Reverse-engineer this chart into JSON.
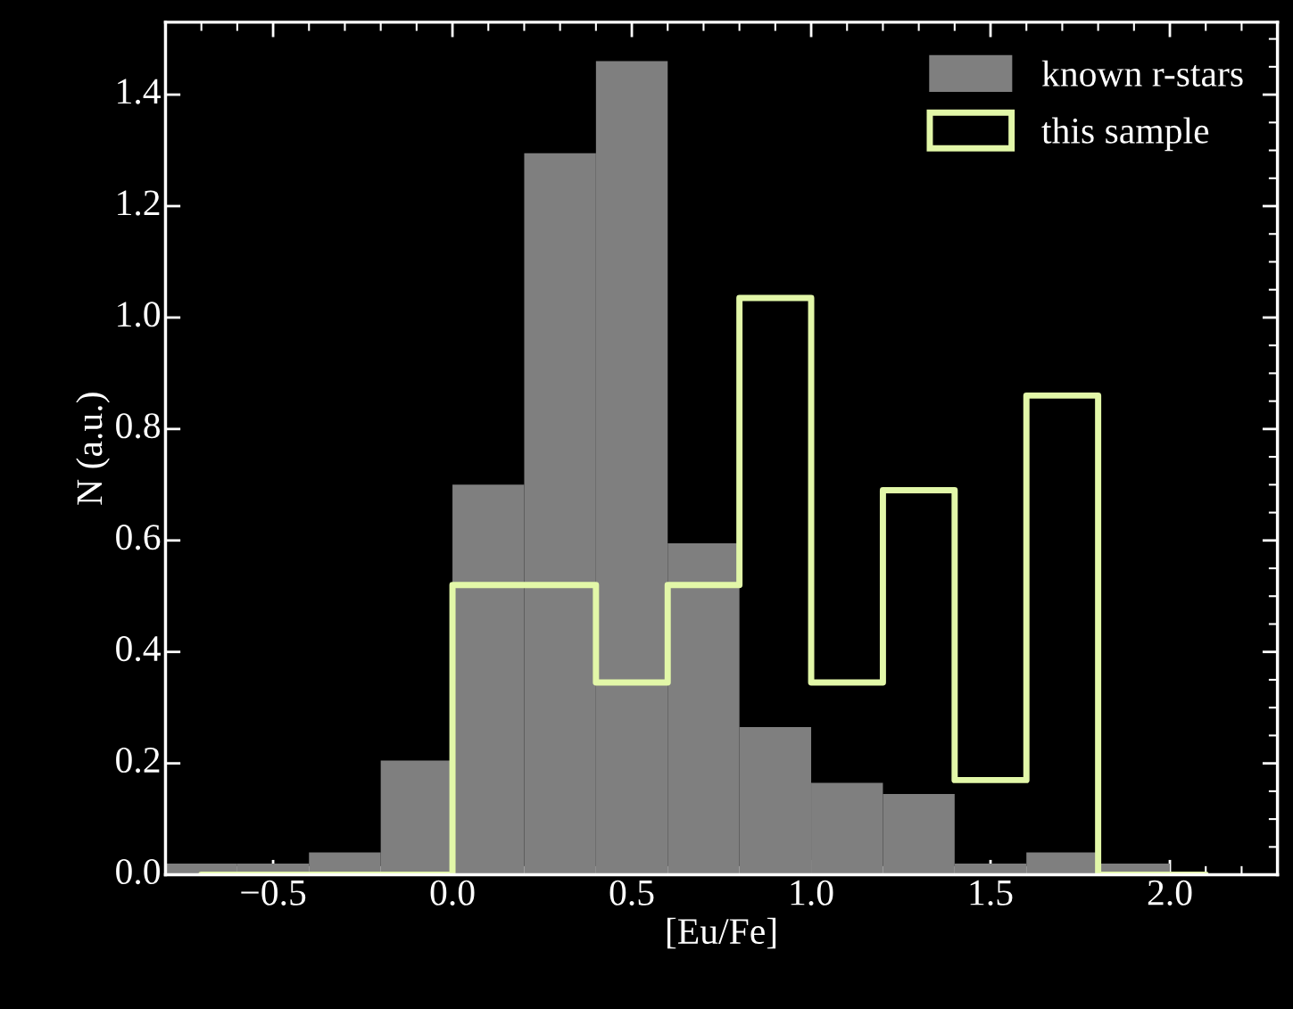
{
  "chart_data": {
    "type": "histogram",
    "xlabel": "[Eu/Fe]",
    "ylabel": "N (a.u.)",
    "bins": [
      -0.8,
      -0.6,
      -0.4,
      -0.2,
      0.0,
      0.2,
      0.4,
      0.6,
      0.8,
      1.0,
      1.2,
      1.4,
      1.6,
      1.8,
      2.0,
      2.2
    ],
    "series": [
      {
        "name": "known r-stars",
        "type": "histogram",
        "color": "#7f7f7f",
        "values": [
          0.02,
          0.02,
          0.04,
          0.205,
          0.7,
          1.295,
          1.46,
          0.595,
          0.265,
          0.165,
          0.145,
          0.02,
          0.04,
          0.02,
          0
        ]
      },
      {
        "name": "this sample",
        "type": "step",
        "color": "#e2f7a8",
        "x": [
          -0.7,
          -0.5,
          -0.3,
          -0.1,
          0.1,
          0.3,
          0.5,
          0.7,
          0.9,
          1.1,
          1.3,
          1.5,
          1.7,
          1.9,
          2.1
        ],
        "values": [
          0,
          0,
          0,
          0,
          0.52,
          0.52,
          0.345,
          0.52,
          1.035,
          0.345,
          0.69,
          0.17,
          0.86,
          0,
          0
        ]
      }
    ],
    "xlim": [
      -0.8,
      2.3
    ],
    "ylim": [
      0.0,
      1.53
    ],
    "xticks": [
      {
        "value": -0.5,
        "label": "−0.5"
      },
      {
        "value": 0.0,
        "label": "0.0"
      },
      {
        "value": 0.5,
        "label": "0.5"
      },
      {
        "value": 1.0,
        "label": "1.0"
      },
      {
        "value": 1.5,
        "label": "1.5"
      },
      {
        "value": 2.0,
        "label": "2.0"
      }
    ],
    "yticks": [
      {
        "value": 0.0,
        "label": "0.0"
      },
      {
        "value": 0.2,
        "label": "0.2"
      },
      {
        "value": 0.4,
        "label": "0.4"
      },
      {
        "value": 0.6,
        "label": "0.6"
      },
      {
        "value": 0.8,
        "label": "0.8"
      },
      {
        "value": 1.0,
        "label": "1.0"
      },
      {
        "value": 1.2,
        "label": "1.2"
      },
      {
        "value": 1.4,
        "label": "1.4"
      }
    ],
    "grid": false,
    "legend": "top right"
  }
}
